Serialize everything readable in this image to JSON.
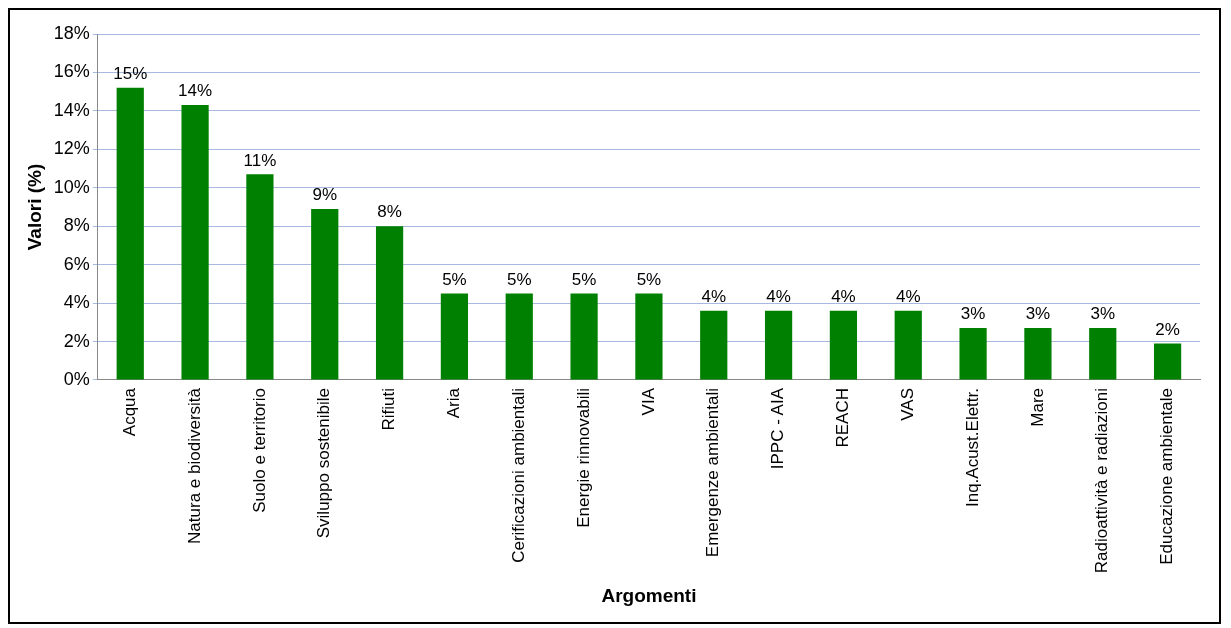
{
  "chart_data": {
    "type": "bar",
    "xlabel": "Argomenti",
    "ylabel": "Valori (%)",
    "categories": [
      "Acqua",
      "Natura e biodiversità",
      "Suolo e territorio",
      "Sviluppo sostenibile",
      "Rifiuti",
      "Aria",
      "Cerificazioni ambientali",
      "Energie rinnovabili",
      "VIA",
      "Emergenze ambientali",
      "IPPC - AIA",
      "REACH",
      "VAS",
      "Inq.Acust.Elettr.",
      "Mare",
      "Radioattività e radiazioni",
      "Educazione ambientale"
    ],
    "values": [
      15.2,
      14.3,
      10.7,
      8.9,
      8.0,
      4.5,
      4.5,
      4.5,
      4.5,
      3.6,
      3.6,
      3.6,
      3.6,
      2.7,
      2.7,
      2.7,
      1.9
    ],
    "value_labels": [
      "15%",
      "14%",
      "11%",
      "9%",
      "8%",
      "5%",
      "5%",
      "5%",
      "5%",
      "4%",
      "4%",
      "4%",
      "4%",
      "3%",
      "3%",
      "3%",
      "2%"
    ],
    "color": "#008000",
    "ylim": [
      0,
      18
    ],
    "yticks": [
      {
        "value": 0,
        "label": "0%"
      },
      {
        "value": 2,
        "label": "2%"
      },
      {
        "value": 4,
        "label": "4%"
      },
      {
        "value": 6,
        "label": "6%"
      },
      {
        "value": 8,
        "label": "8%"
      },
      {
        "value": 10,
        "label": "10%"
      },
      {
        "value": 12,
        "label": "12%"
      },
      {
        "value": 14,
        "label": "14%"
      },
      {
        "value": 16,
        "label": "16%"
      },
      {
        "value": 18,
        "label": "18%"
      }
    ],
    "grid": "y",
    "legend": false
  }
}
